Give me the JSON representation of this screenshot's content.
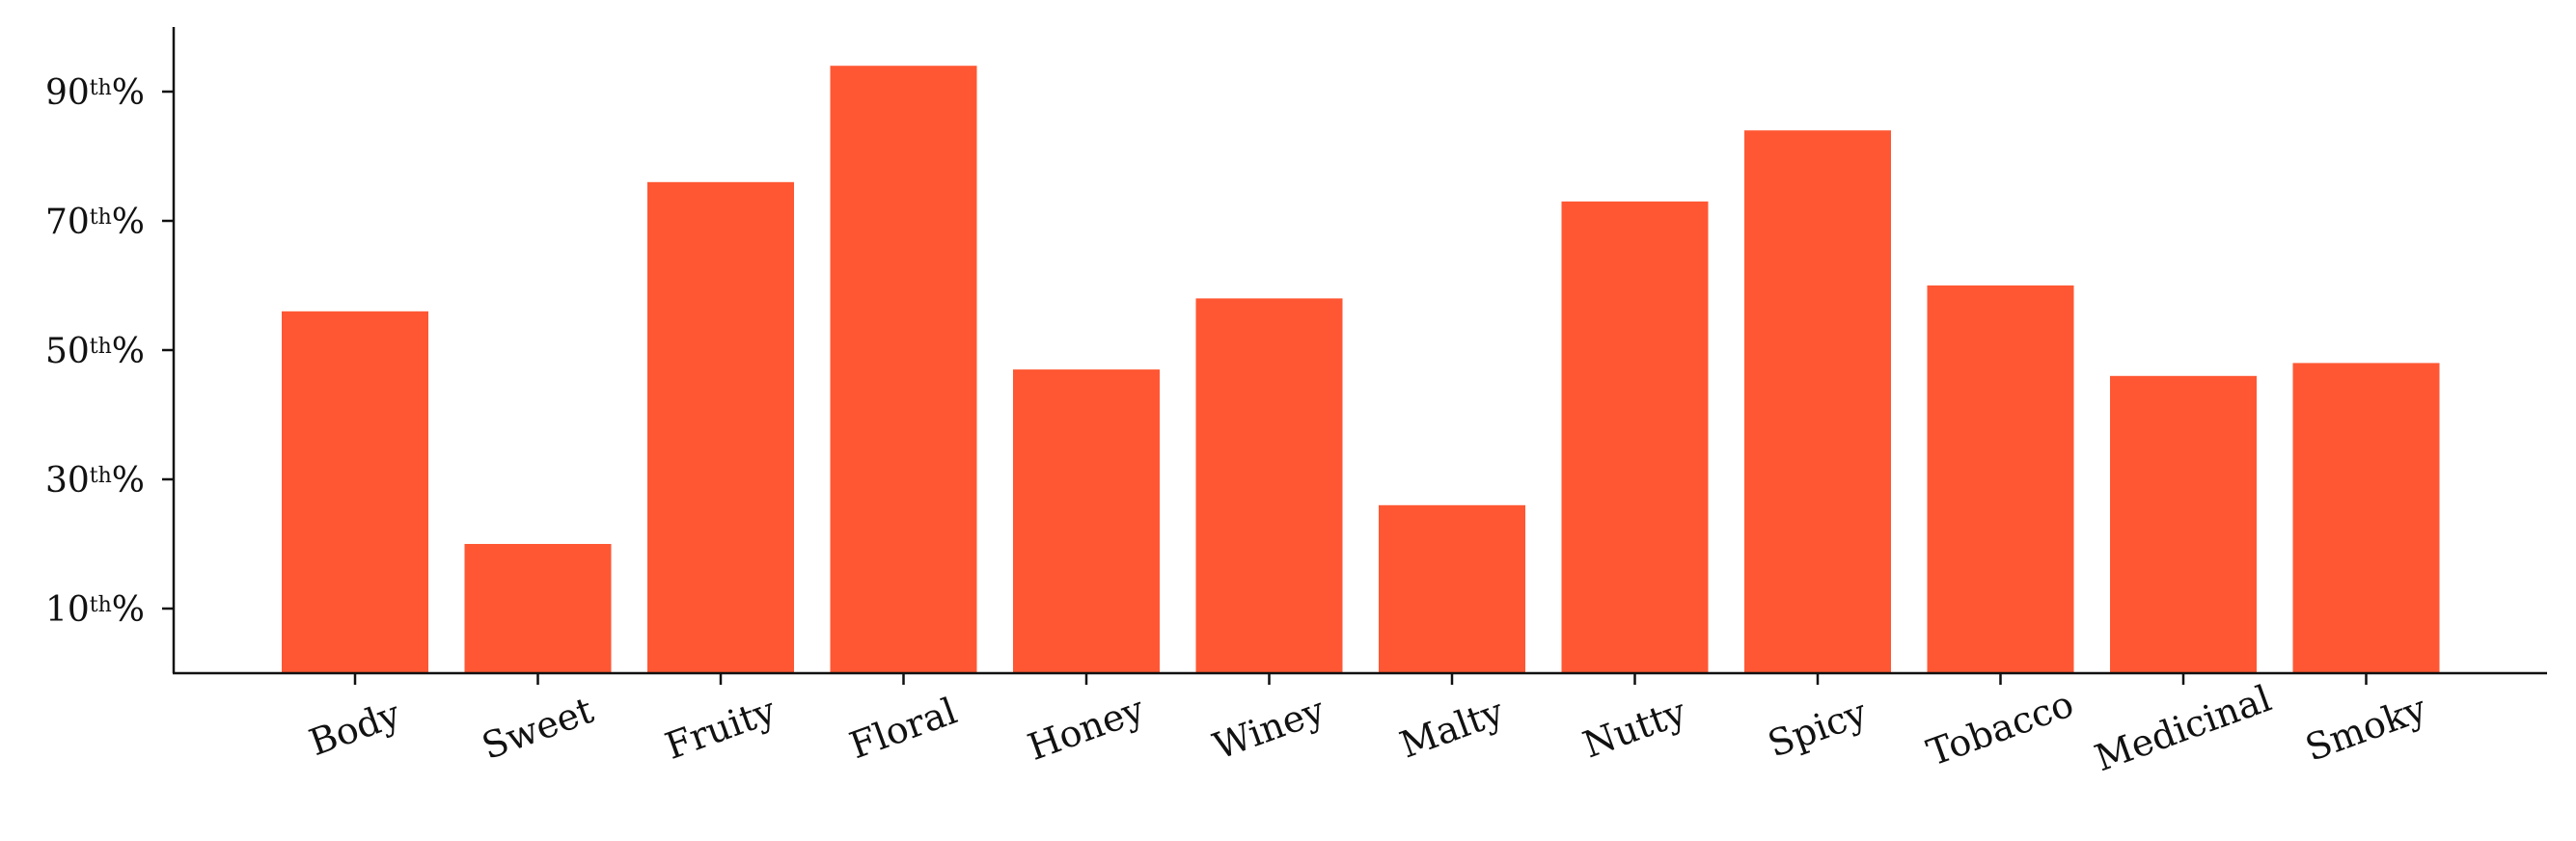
{
  "chart_data": {
    "type": "bar",
    "title": "",
    "xlabel": "",
    "ylabel": "",
    "categories": [
      "Body",
      "Sweet",
      "Fruity",
      "Floral",
      "Honey",
      "Winey",
      "Malty",
      "Nutty",
      "Spicy",
      "Tobacco",
      "Medicinal",
      "Smoky"
    ],
    "values": [
      56,
      20,
      76,
      94,
      47,
      58,
      26,
      73,
      84,
      60,
      46,
      48
    ],
    "ylim": [
      0,
      100
    ],
    "yticks": [
      {
        "value": 10,
        "number": "10",
        "suffix_sup": "th",
        "suffix": "%"
      },
      {
        "value": 30,
        "number": "30",
        "suffix_sup": "th",
        "suffix": "%"
      },
      {
        "value": 50,
        "number": "50",
        "suffix_sup": "th",
        "suffix": "%"
      },
      {
        "value": 70,
        "number": "70",
        "suffix_sup": "th",
        "suffix": "%"
      },
      {
        "value": 90,
        "number": "90",
        "suffix_sup": "th",
        "suffix": "%"
      }
    ],
    "x_tick_rotation_deg": 20,
    "grid": false,
    "legend": "none",
    "bar_color": "#FF5733",
    "axis_color": "#111111"
  }
}
